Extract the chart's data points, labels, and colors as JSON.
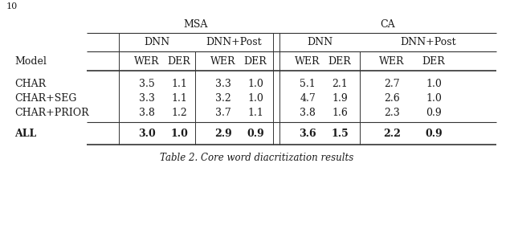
{
  "title": "Table 2. Core word diacritization results",
  "page_label": "10",
  "col_headers": [
    "Model",
    "WER",
    "DER",
    "WER",
    "DER",
    "WER",
    "DER",
    "WER",
    "DER"
  ],
  "rows": [
    [
      "CHAR",
      "3.5",
      "1.1",
      "3.3",
      "1.0",
      "5.1",
      "2.1",
      "2.7",
      "1.0"
    ],
    [
      "CHAR+SEG",
      "3.3",
      "1.1",
      "3.2",
      "1.0",
      "4.7",
      "1.9",
      "2.6",
      "1.0"
    ],
    [
      "CHAR+PRIOR",
      "3.8",
      "1.2",
      "3.7",
      "1.1",
      "3.8",
      "1.6",
      "2.3",
      "0.9"
    ]
  ],
  "bold_row": [
    "ALL",
    "3.0",
    "1.0",
    "2.9",
    "0.9",
    "3.6",
    "1.5",
    "2.2",
    "0.9"
  ],
  "bg_color": "#ffffff",
  "text_color": "#1a1a1a",
  "font_size": 9.0,
  "caption_font_size": 8.5
}
